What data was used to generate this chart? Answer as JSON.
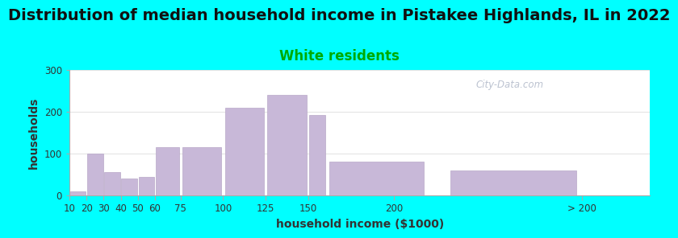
{
  "title": "Distribution of median household income in Pistakee Highlands, IL in 2022",
  "subtitle": "White residents",
  "xlabel": "household income ($1000)",
  "ylabel": "households",
  "background_color": "#00FFFF",
  "bar_color": "#c8b8d8",
  "bar_edge_color": "#b8a8c8",
  "values": [
    10,
    100,
    55,
    40,
    45,
    115,
    115,
    210,
    240,
    192,
    80,
    60
  ],
  "bar_lefts": [
    10,
    20,
    30,
    40,
    50,
    60,
    75,
    100,
    125,
    150,
    160,
    230
  ],
  "bar_widths": [
    10,
    10,
    10,
    10,
    10,
    15,
    25,
    25,
    25,
    10,
    60,
    80
  ],
  "xtick_positions": [
    10,
    20,
    30,
    40,
    50,
    60,
    75,
    100,
    125,
    150,
    200,
    310
  ],
  "xtick_labels": [
    "10",
    "20",
    "30",
    "40",
    "50",
    "60",
    "75",
    "100",
    "125",
    "150",
    "200",
    "> 200"
  ],
  "xlim": [
    10,
    350
  ],
  "ylim": [
    0,
    300
  ],
  "yticks": [
    0,
    100,
    200,
    300
  ],
  "title_fontsize": 14,
  "subtitle_fontsize": 12,
  "subtitle_color": "#00aa00",
  "axis_label_fontsize": 10,
  "tick_fontsize": 8.5,
  "watermark_text": "City-Data.com",
  "watermark_color": "#b0b8c8"
}
